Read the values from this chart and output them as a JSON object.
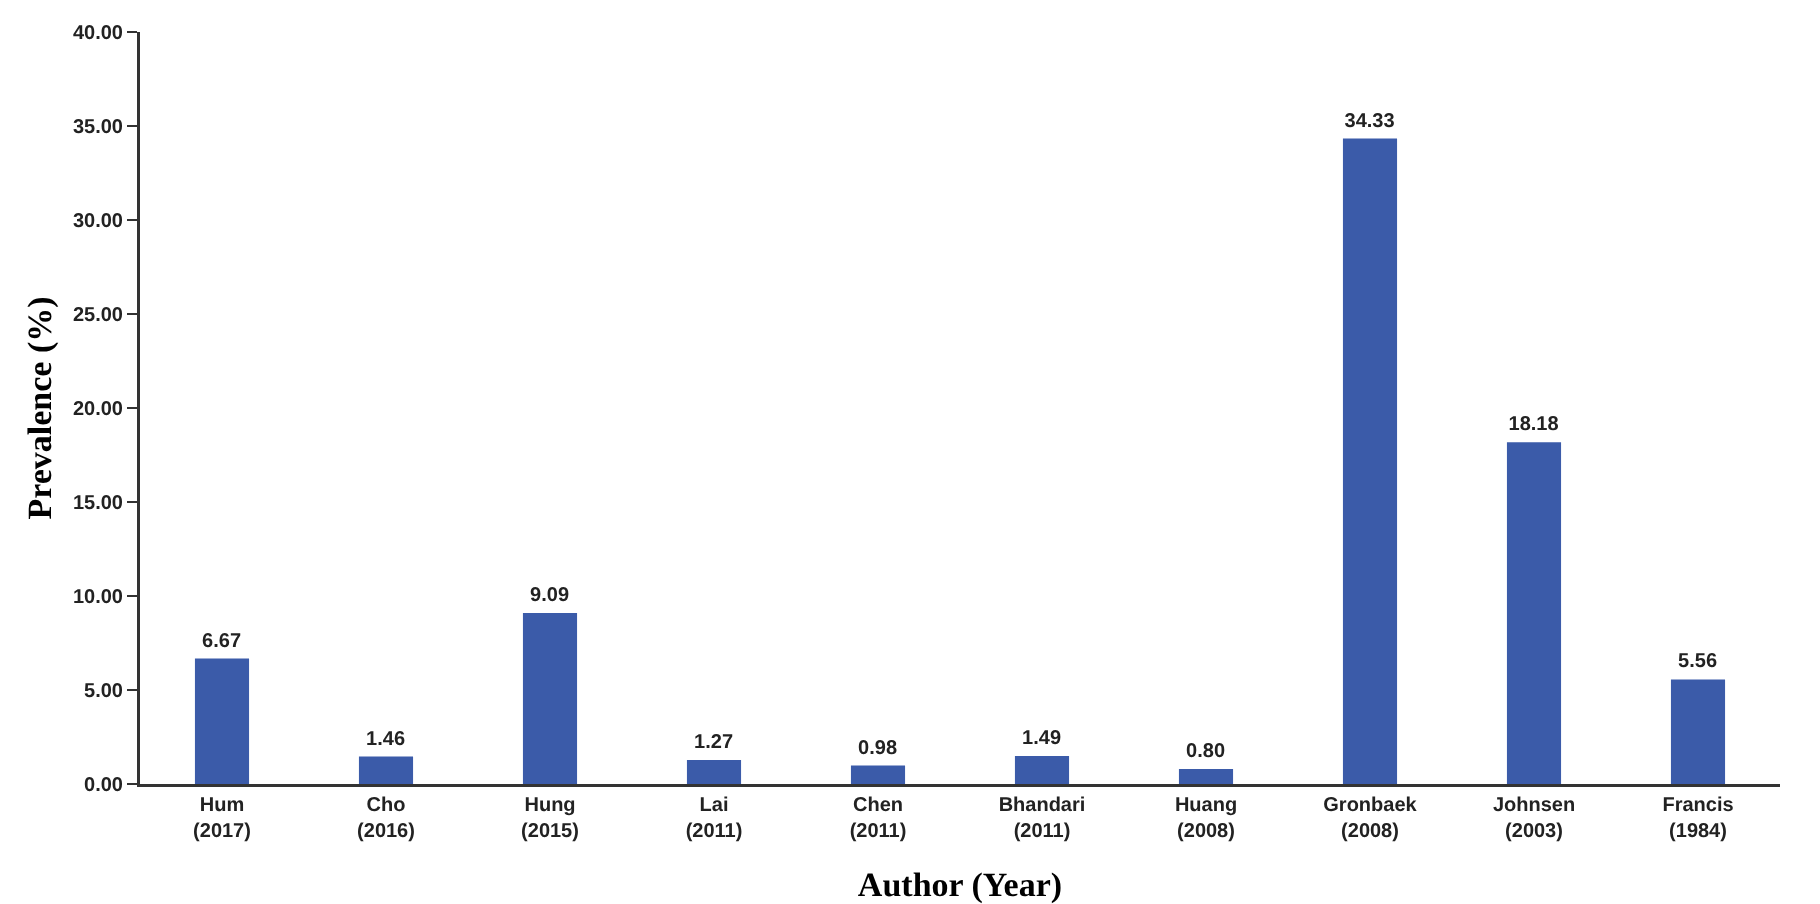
{
  "chart_data": {
    "type": "bar",
    "xlabel": "Author (Year)",
    "ylabel": "Prevalence (%)",
    "categories": [
      "Hum\n(2017)",
      "Cho\n(2016)",
      "Hung\n(2015)",
      "Lai\n(2011)",
      "Chen\n(2011)",
      "Bhandari\n(2011)",
      "Huang\n(2008)",
      "Gronbaek\n(2008)",
      "Johnsen\n(2003)",
      "Francis\n(1984)"
    ],
    "values": [
      6.67,
      1.46,
      9.09,
      1.27,
      0.98,
      1.49,
      0.8,
      34.33,
      18.18,
      5.56
    ],
    "value_labels": [
      "6.67",
      "1.46",
      "9.09",
      "1.27",
      "0.98",
      "1.49",
      "0.80",
      "34.33",
      "18.18",
      "5.56"
    ],
    "color": "#3b5ba9",
    "ylim": [
      0,
      40
    ],
    "yticks": [
      {
        "value": 0,
        "label": "0.00"
      },
      {
        "value": 5,
        "label": "5.00"
      },
      {
        "value": 10,
        "label": "10.00"
      },
      {
        "value": 15,
        "label": "15.00"
      },
      {
        "value": 20,
        "label": "20.00"
      },
      {
        "value": 25,
        "label": "25.00"
      },
      {
        "value": 30,
        "label": "30.00"
      },
      {
        "value": 35,
        "label": "35.00"
      },
      {
        "value": 40,
        "label": "40.00"
      }
    ],
    "grid": false
  }
}
